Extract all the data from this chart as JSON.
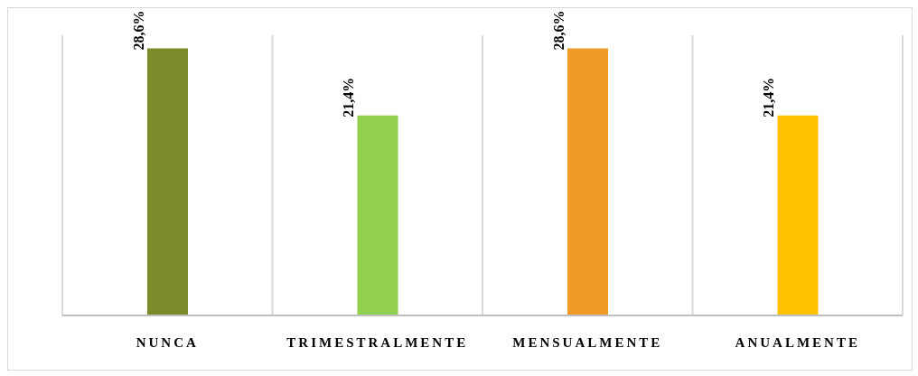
{
  "chart_data": {
    "type": "bar",
    "categories": [
      "NUNCA",
      "TRIMESTRALMENTE",
      "MENSUALMENTE",
      "ANUALMENTE"
    ],
    "values": [
      28.6,
      21.4,
      28.6,
      21.4
    ],
    "colors": [
      "#7b8b2a",
      "#92d050",
      "#f09b28",
      "#ffc000"
    ],
    "value_labels": [
      "28,6%",
      "21,4%",
      "28,6%",
      "21,4%"
    ],
    "ylim": [
      0,
      30
    ],
    "tick_labels": "x",
    "grid": "x"
  }
}
